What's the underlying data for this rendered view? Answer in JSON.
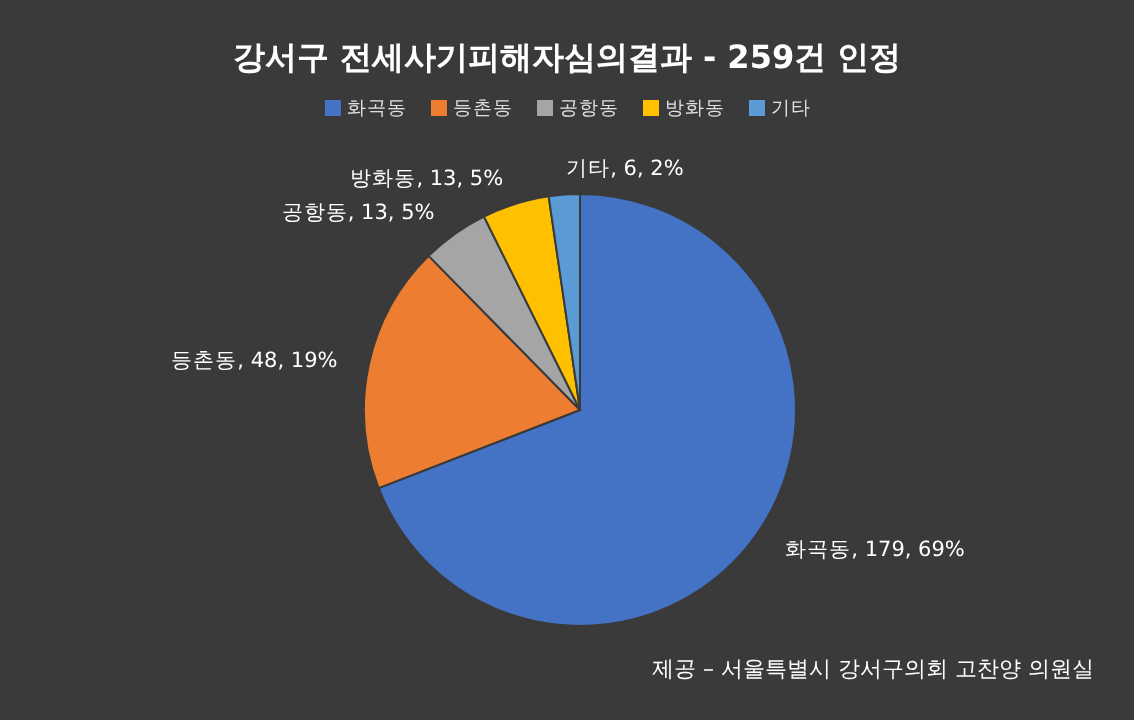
{
  "chart_data": {
    "type": "pie",
    "title": "강서구 전세사기피해자심의결과  - 259건 인정",
    "categories": [
      "화곡동",
      "등촌동",
      "공항동",
      "방화동",
      "기타"
    ],
    "values": [
      179,
      48,
      13,
      13,
      6
    ],
    "colors": [
      "#4472c4",
      "#ed7d31",
      "#a5a5a5",
      "#ffc000",
      "#5b9bd5"
    ],
    "value_labels": [
      "화곡동, 179, 69%",
      "등촌동, 48, 19%",
      "공항동, 13, 5%",
      "방화동, 13, 5%",
      "기타, 6, 2%"
    ],
    "legend": "top",
    "annotations": [
      "제공 – 서울특별시 강서구의회 고찬양 의원실"
    ]
  }
}
